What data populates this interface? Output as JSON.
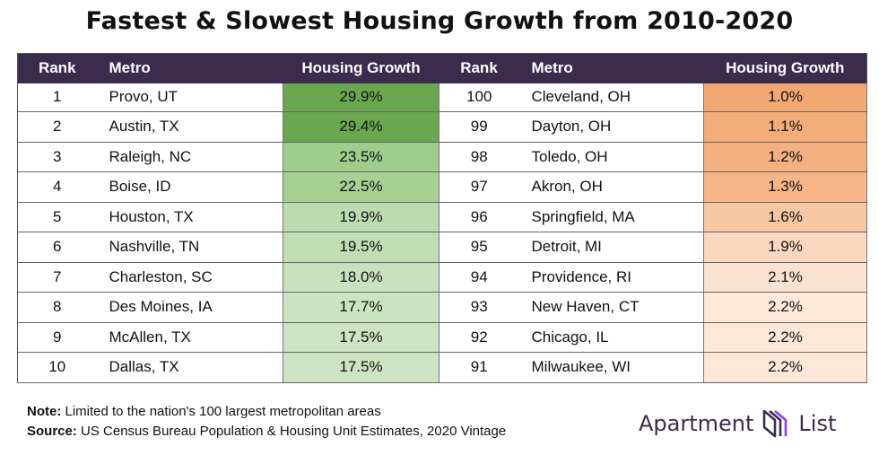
{
  "title": "Fastest & Slowest Housing Growth from 2010-2020",
  "headers": {
    "rank": "Rank",
    "metro": "Metro",
    "growth": "Housing Growth"
  },
  "fastest": [
    {
      "rank": "1",
      "metro": "Provo, UT",
      "growth": "29.9%",
      "color": "#6aa84f"
    },
    {
      "rank": "2",
      "metro": "Austin, TX",
      "growth": "29.4%",
      "color": "#6aa84f"
    },
    {
      "rank": "3",
      "metro": "Raleigh, NC",
      "growth": "23.5%",
      "color": "#9fcd8c"
    },
    {
      "rank": "4",
      "metro": "Boise, ID",
      "growth": "22.5%",
      "color": "#a6d193"
    },
    {
      "rank": "5",
      "metro": "Houston, TX",
      "growth": "19.9%",
      "color": "#bcdcaf"
    },
    {
      "rank": "6",
      "metro": "Nashville, TN",
      "growth": "19.5%",
      "color": "#c0deb4"
    },
    {
      "rank": "7",
      "metro": "Charleston, SC",
      "growth": "18.0%",
      "color": "#c8e2bd"
    },
    {
      "rank": "8",
      "metro": "Des Moines, IA",
      "growth": "17.7%",
      "color": "#cbe4c0"
    },
    {
      "rank": "9",
      "metro": "McAllen, TX",
      "growth": "17.5%",
      "color": "#cde4c2"
    },
    {
      "rank": "10",
      "metro": "Dallas, TX",
      "growth": "17.5%",
      "color": "#cde4c2"
    }
  ],
  "slowest": [
    {
      "rank": "100",
      "metro": "Cleveland, OH",
      "growth": "1.0%",
      "color": "#f3a872"
    },
    {
      "rank": "99",
      "metro": "Dayton, OH",
      "growth": "1.1%",
      "color": "#f3ab77"
    },
    {
      "rank": "98",
      "metro": "Toledo, OH",
      "growth": "1.2%",
      "color": "#f4b080"
    },
    {
      "rank": "97",
      "metro": "Akron, OH",
      "growth": "1.3%",
      "color": "#f5b587"
    },
    {
      "rank": "96",
      "metro": "Springfield, MA",
      "growth": "1.6%",
      "color": "#f7c6a3"
    },
    {
      "rank": "95",
      "metro": "Detroit, MI",
      "growth": "1.9%",
      "color": "#fad7bf"
    },
    {
      "rank": "94",
      "metro": "Providence, RI",
      "growth": "2.1%",
      "color": "#fbe1cf"
    },
    {
      "rank": "93",
      "metro": "New Haven, CT",
      "growth": "2.2%",
      "color": "#fce7d9"
    },
    {
      "rank": "92",
      "metro": "Chicago, IL",
      "growth": "2.2%",
      "color": "#fce7d9"
    },
    {
      "rank": "91",
      "metro": "Milwaukee, WI",
      "growth": "2.2%",
      "color": "#fce7d9"
    }
  ],
  "footer": {
    "note_label": "Note:",
    "note_text": " Limited to the nation's 100 largest metropolitan areas",
    "source_label": "Source:",
    "source_text": " US Census Bureau Population & Housing Unit Estimates, 2020 Vintage"
  },
  "logo": {
    "word1": "Apartment",
    "word2": "List",
    "icon": "apartment-list-logo-icon"
  }
}
